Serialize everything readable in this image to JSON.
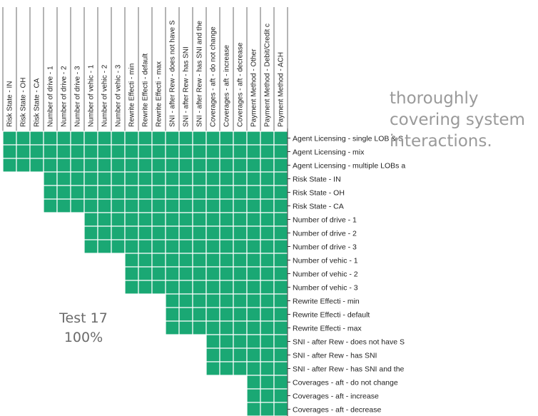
{
  "side_note": [
    "thoroughly",
    "covering system",
    "interactions."
  ],
  "test": {
    "name": "Test 17",
    "coverage": "100%"
  },
  "colors": {
    "cell": "#1aa874",
    "grid": "#ffffff",
    "axis": "#333333",
    "text": "#222222"
  },
  "chart_data": {
    "type": "heatmap",
    "title": "",
    "columns": [
      "Risk State - IN",
      "Risk State - OH",
      "Risk State - CA",
      "Number of drive - 1",
      "Number of drive - 2",
      "Number of drive - 3",
      "Number of vehic - 1",
      "Number of vehic - 2",
      "Number of vehic - 3",
      "Rewrite Effecti - min",
      "Rewrite Effecti - default",
      "Rewrite Effecti - max",
      "SNI - after Rew - does not have S",
      "SNI - after Rew - has SNI",
      "SNI - after Rew - has SNI and the",
      "Coverages - aft - do not change",
      "Coverages - aft - increase",
      "Coverages - aft - decrease",
      "Payment Method - Other",
      "Payment Method - Debit/Credit c",
      "Payment Method - ACH"
    ],
    "rows": [
      "Agent Licensing - single LOB & S",
      "Agent Licensing - mix",
      "Agent Licensing - multiple LOBs a",
      "Risk State - IN",
      "Risk State - OH",
      "Risk State - CA",
      "Number of drive - 1",
      "Number of drive - 2",
      "Number of drive - 3",
      "Number of vehic - 1",
      "Number of vehic - 2",
      "Number of vehic - 3",
      "Rewrite Effecti - min",
      "Rewrite Effecti - default",
      "Rewrite Effecti - max",
      "SNI - after Rew - does not have S",
      "SNI - after Rew - has SNI",
      "SNI - after Rew - has SNI and the",
      "Coverages - aft - do not change",
      "Coverages - aft - increase",
      "Coverages - aft - decrease"
    ],
    "row_start_column": [
      0,
      0,
      0,
      3,
      3,
      3,
      6,
      6,
      6,
      9,
      9,
      9,
      12,
      12,
      12,
      15,
      15,
      15,
      18,
      18,
      18
    ],
    "cell_value": 1,
    "coverage_percent": 100
  }
}
